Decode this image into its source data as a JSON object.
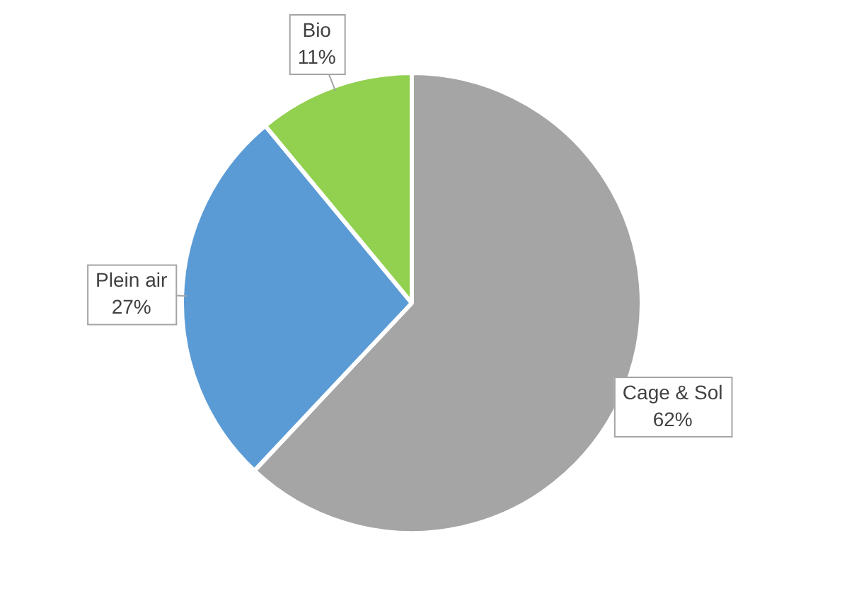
{
  "chart_data": {
    "type": "pie",
    "categories": [
      "Cage & Sol",
      "Plein air",
      "Bio"
    ],
    "values": [
      62,
      27,
      11
    ],
    "colors": [
      "#a5a5a5",
      "#5b9bd5",
      "#92d050"
    ],
    "value_labels": [
      "62%",
      "27%",
      "11%"
    ],
    "legend": false
  }
}
